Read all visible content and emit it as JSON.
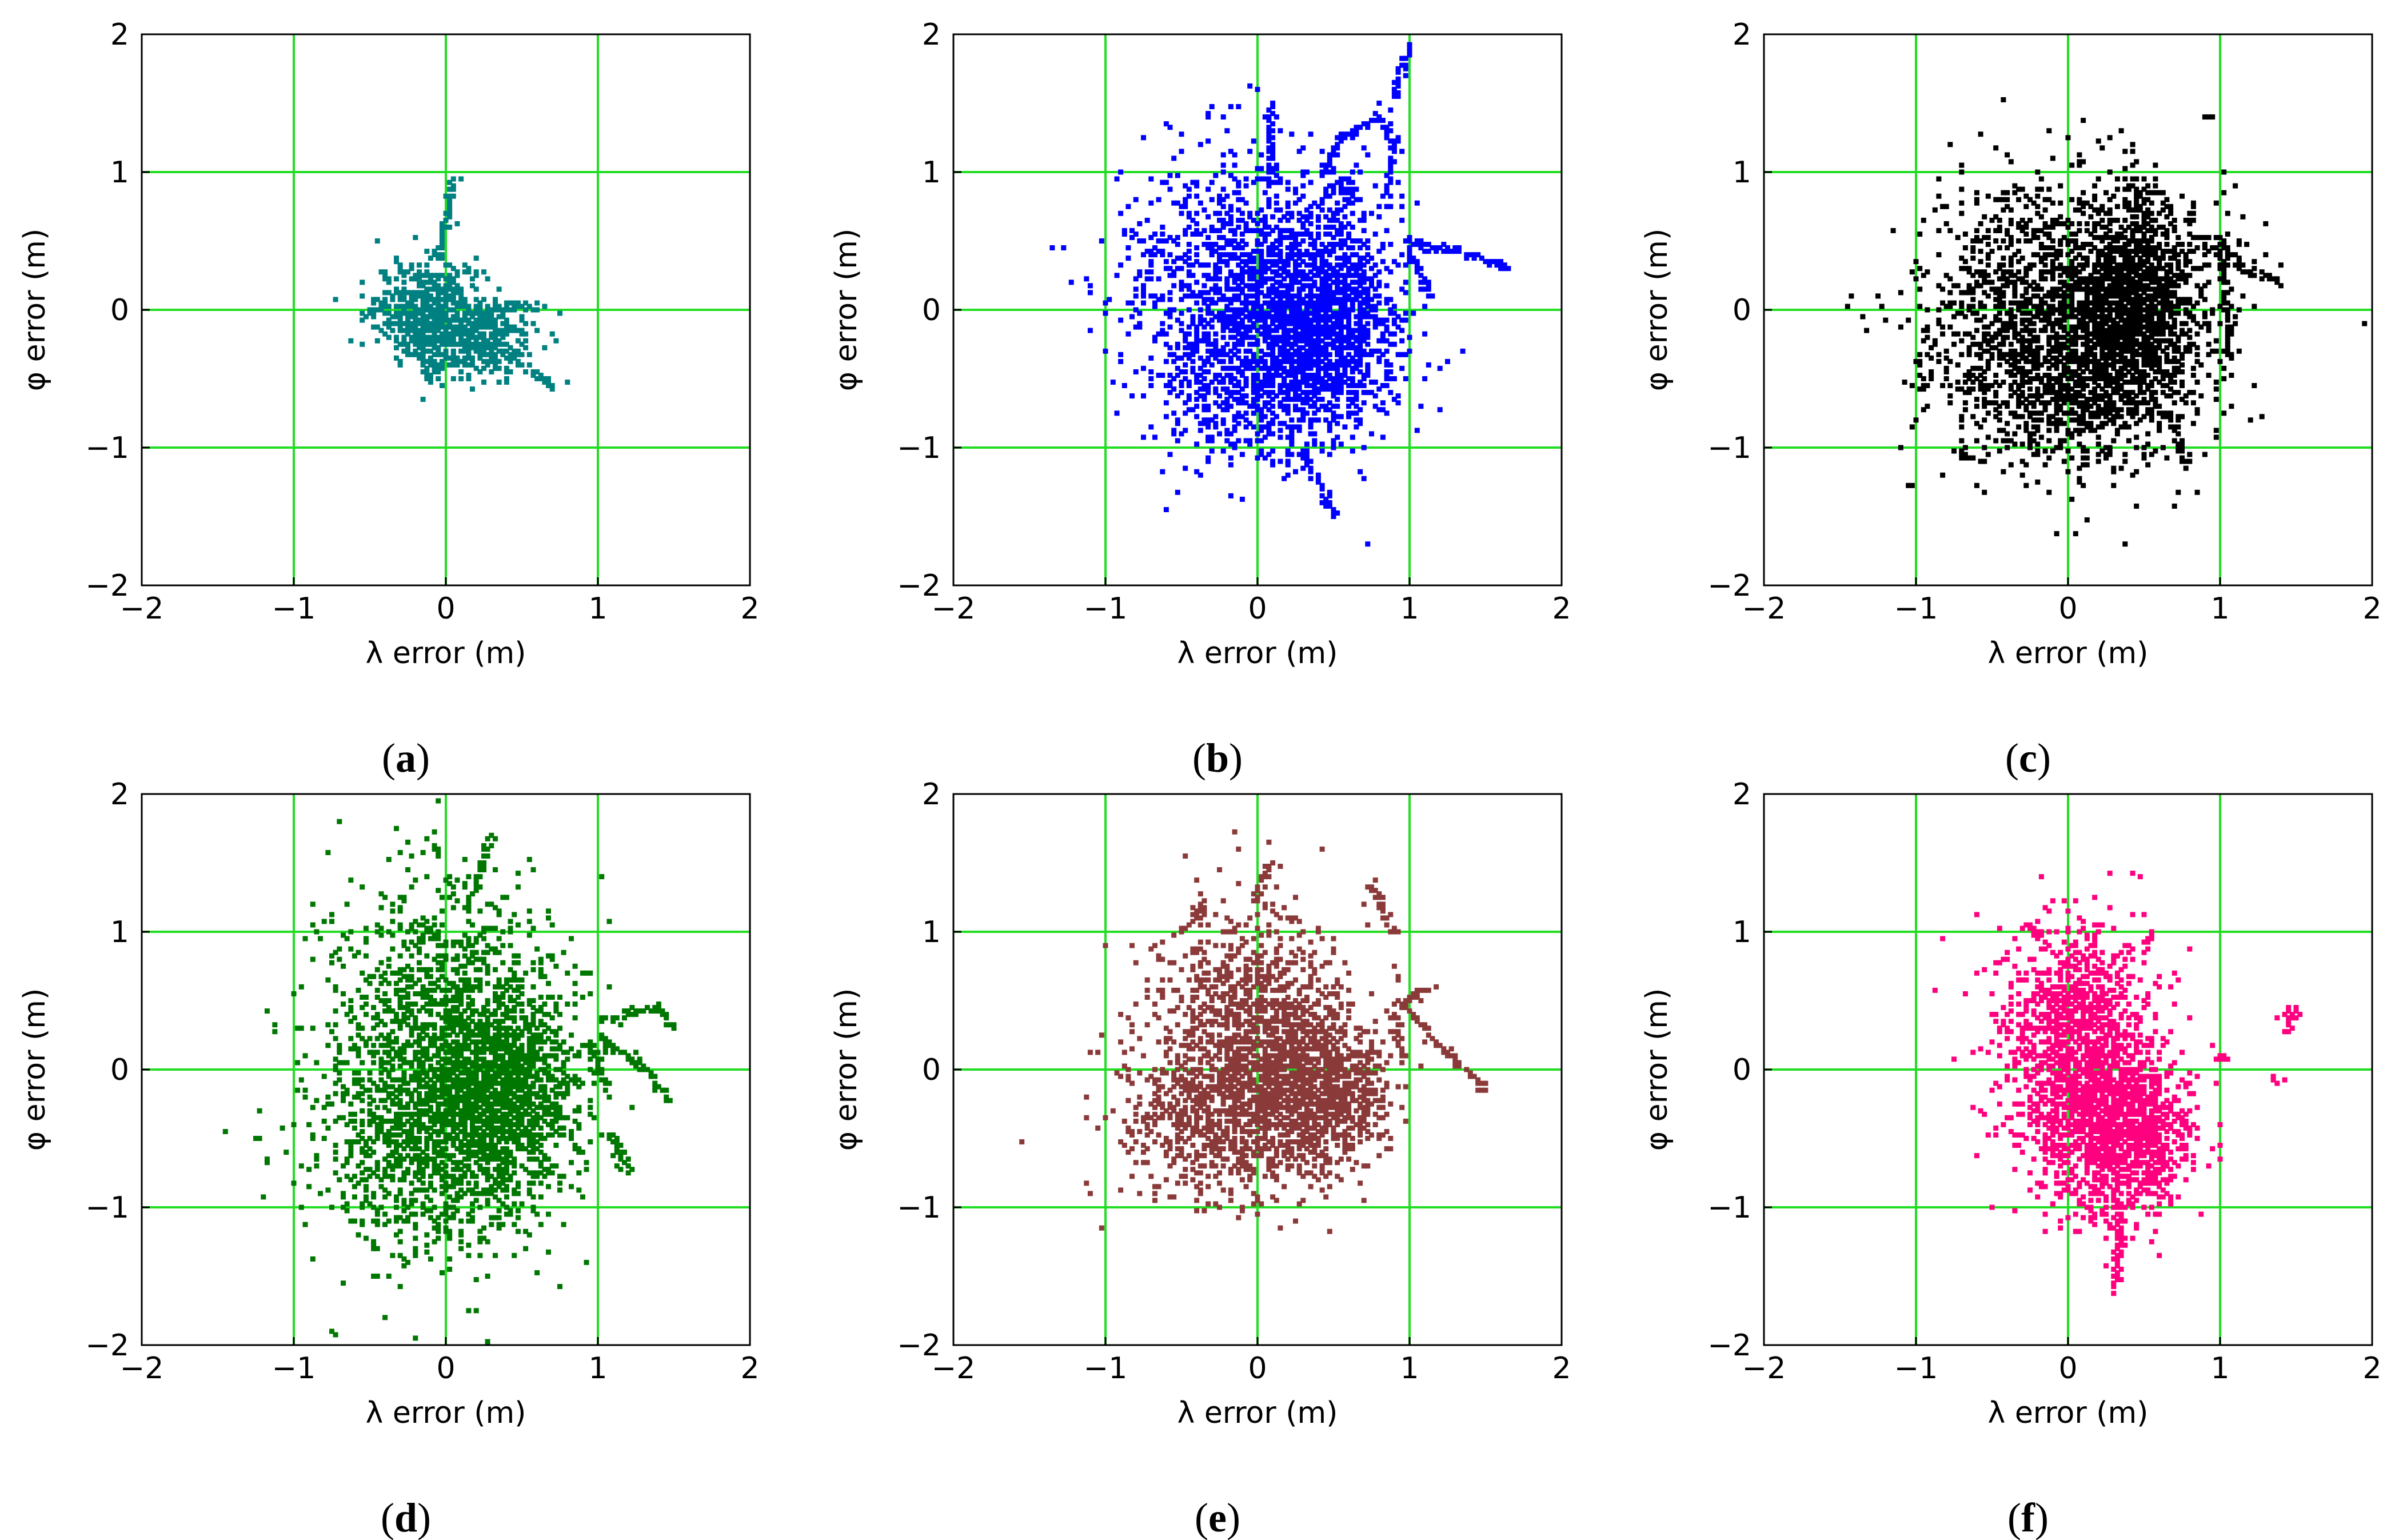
{
  "figure": {
    "panel_count": 6,
    "grid_color": "#22dd22",
    "axis_color": "#000000"
  },
  "chart_data": [
    {
      "type": "scatter",
      "label": "a",
      "xlabel": "λ error (m)",
      "ylabel": "φ error (m)",
      "xlim": [
        -2,
        2
      ],
      "ylim": [
        -2,
        2
      ],
      "xticks": [
        -2,
        -1,
        0,
        1,
        2
      ],
      "yticks": [
        -2,
        -1,
        0,
        1,
        2
      ],
      "xtick_labels": [
        "−2",
        "−1",
        "0",
        "1",
        "2"
      ],
      "ytick_labels": [
        "−2",
        "−1",
        "0",
        "1",
        "2"
      ],
      "grid": true,
      "color": "#008080",
      "cluster": {
        "center": [
          -0.1,
          0.0
        ],
        "core": [
          {
            "dx": 0.0,
            "dy": 0.0,
            "sx": 0.18,
            "sy": 0.18
          },
          {
            "dx": 0.25,
            "dy": -0.2,
            "sx": 0.22,
            "sy": 0.15
          }
        ],
        "point_count": 900
      },
      "trails": [
        {
          "points": [
            [
              -0.05,
              0.35
            ],
            [
              0.0,
              0.6
            ],
            [
              0.05,
              0.95
            ]
          ]
        },
        {
          "points": [
            [
              0.2,
              -0.2
            ],
            [
              0.45,
              -0.35
            ],
            [
              0.7,
              -0.55
            ]
          ]
        },
        {
          "points": [
            [
              -0.2,
              -0.15
            ],
            [
              -0.15,
              -0.35
            ],
            [
              -0.1,
              -0.5
            ]
          ]
        },
        {
          "points": [
            [
              0.3,
              0.0
            ],
            [
              0.5,
              0.02
            ],
            [
              0.65,
              0.02
            ]
          ]
        },
        {
          "points": [
            [
              -0.35,
              0.1
            ],
            [
              -0.45,
              0.0
            ],
            [
              -0.55,
              -0.05
            ]
          ]
        }
      ]
    },
    {
      "type": "scatter",
      "label": "b",
      "xlabel": "λ error (m)",
      "ylabel": "φ error (m)",
      "xlim": [
        -2,
        2
      ],
      "ylim": [
        -2,
        2
      ],
      "xticks": [
        -2,
        -1,
        0,
        1,
        2
      ],
      "yticks": [
        -2,
        -1,
        0,
        1,
        2
      ],
      "xtick_labels": [
        "−2",
        "−1",
        "0",
        "1",
        "2"
      ],
      "ytick_labels": [
        "−2",
        "−1",
        "0",
        "1",
        "2"
      ],
      "grid": true,
      "color": "#0000ff",
      "cluster": {
        "center": [
          -0.05,
          0.05
        ],
        "core": [
          {
            "dx": 0.0,
            "dy": 0.25,
            "sx": 0.42,
            "sy": 0.45
          },
          {
            "dx": 0.1,
            "dy": -0.45,
            "sx": 0.38,
            "sy": 0.35
          },
          {
            "dx": 0.5,
            "dy": -0.1,
            "sx": 0.22,
            "sy": 0.35
          }
        ],
        "point_count": 3200
      },
      "trails": [
        {
          "points": [
            [
              0.45,
              1.0
            ],
            [
              0.55,
              1.25
            ],
            [
              0.8,
              1.4
            ],
            [
              0.9,
              1.2
            ],
            [
              0.85,
              0.8
            ]
          ]
        },
        {
          "points": [
            [
              0.9,
              1.55
            ],
            [
              0.95,
              1.75
            ],
            [
              1.0,
              1.9
            ]
          ]
        },
        {
          "points": [
            [
              0.1,
              0.95
            ],
            [
              0.08,
              1.25
            ],
            [
              0.1,
              1.5
            ]
          ]
        },
        {
          "points": [
            [
              1.0,
              0.5
            ],
            [
              1.2,
              0.45
            ],
            [
              1.45,
              0.38
            ],
            [
              1.65,
              0.3
            ]
          ]
        },
        {
          "points": [
            [
              1.0,
              0.45
            ],
            [
              1.1,
              0.2
            ],
            [
              1.15,
              0.1
            ]
          ]
        },
        {
          "points": [
            [
              0.3,
              -1.0
            ],
            [
              0.4,
              -1.25
            ],
            [
              0.5,
              -1.5
            ]
          ]
        },
        {
          "points": [
            [
              0.5,
              0.9
            ],
            [
              0.62,
              0.95
            ],
            [
              0.6,
              0.8
            ]
          ]
        }
      ]
    },
    {
      "type": "scatter",
      "label": "c",
      "xlabel": "λ error (m)",
      "ylabel": "φ error (m)",
      "xlim": [
        -2,
        2
      ],
      "ylim": [
        -2,
        2
      ],
      "xticks": [
        -2,
        -1,
        0,
        1,
        2
      ],
      "yticks": [
        -2,
        -1,
        0,
        1,
        2
      ],
      "xtick_labels": [
        "−2",
        "−1",
        "0",
        "1",
        "2"
      ],
      "ytick_labels": [
        "−2",
        "−1",
        "0",
        "1",
        "2"
      ],
      "grid": true,
      "color": "#000000",
      "cluster": {
        "center": [
          -0.05,
          -0.05
        ],
        "core": [
          {
            "dx": 0.0,
            "dy": 0.2,
            "sx": 0.45,
            "sy": 0.42
          },
          {
            "dx": 0.05,
            "dy": -0.45,
            "sx": 0.4,
            "sy": 0.33
          },
          {
            "dx": 0.5,
            "dy": 0.1,
            "sx": 0.2,
            "sy": 0.35
          }
        ],
        "point_count": 3400
      },
      "trails": [
        {
          "points": [
            [
              1.0,
              0.5
            ],
            [
              1.15,
              0.3
            ],
            [
              1.3,
              0.25
            ],
            [
              1.4,
              0.2
            ]
          ]
        },
        {
          "points": [
            [
              1.0,
              0.45
            ],
            [
              1.05,
              0.0
            ],
            [
              1.05,
              -0.35
            ]
          ]
        },
        {
          "points": [
            [
              0.4,
              0.9
            ],
            [
              0.5,
              0.8
            ],
            [
              0.5,
              0.65
            ]
          ]
        },
        {
          "points": [
            [
              0.7,
              -0.85
            ],
            [
              0.75,
              -1.0
            ],
            [
              0.8,
              -1.15
            ]
          ]
        },
        {
          "points": [
            [
              0.9,
              1.4
            ],
            [
              0.95,
              1.4
            ]
          ]
        },
        {
          "points": [
            [
              -0.6,
              -1.1
            ],
            [
              -0.7,
              -1.05
            ]
          ]
        }
      ]
    },
    {
      "type": "scatter",
      "label": "d",
      "xlabel": "λ error (m)",
      "ylabel": "φ error (m)",
      "xlim": [
        -2,
        2
      ],
      "ylim": [
        -2,
        2
      ],
      "xticks": [
        -2,
        -1,
        0,
        1,
        2
      ],
      "yticks": [
        -2,
        -1,
        0,
        1,
        2
      ],
      "xtick_labels": [
        "−2",
        "−1",
        "0",
        "1",
        "2"
      ],
      "ytick_labels": [
        "−2",
        "−1",
        "0",
        "1",
        "2"
      ],
      "grid": true,
      "color": "#007700",
      "cluster": {
        "center": [
          -0.05,
          0.0
        ],
        "core": [
          {
            "dx": 0.0,
            "dy": 0.3,
            "sx": 0.38,
            "sy": 0.55
          },
          {
            "dx": 0.0,
            "dy": -0.55,
            "sx": 0.38,
            "sy": 0.4
          },
          {
            "dx": 0.45,
            "dy": -0.1,
            "sx": 0.22,
            "sy": 0.35
          }
        ],
        "point_count": 3400
      },
      "trails": [
        {
          "points": [
            [
              0.15,
              1.2
            ],
            [
              0.25,
              1.5
            ],
            [
              0.3,
              1.7
            ]
          ]
        },
        {
          "points": [
            [
              1.0,
              0.35
            ],
            [
              1.2,
              0.4
            ],
            [
              1.4,
              0.45
            ],
            [
              1.5,
              0.3
            ]
          ]
        },
        {
          "points": [
            [
              1.0,
              0.25
            ],
            [
              1.2,
              0.1
            ],
            [
              1.4,
              -0.1
            ],
            [
              1.45,
              -0.2
            ]
          ]
        },
        {
          "points": [
            [
              1.1,
              -0.45
            ],
            [
              1.15,
              -0.6
            ],
            [
              1.2,
              -0.75
            ]
          ]
        },
        {
          "points": [
            [
              0.95,
              0.2
            ],
            [
              1.0,
              0.0
            ],
            [
              1.05,
              -0.1
            ]
          ]
        }
      ]
    },
    {
      "type": "scatter",
      "label": "e",
      "xlabel": "λ error (m)",
      "ylabel": "φ error (m)",
      "xlim": [
        -2,
        2
      ],
      "ylim": [
        -2,
        2
      ],
      "xticks": [
        -2,
        -1,
        0,
        1,
        2
      ],
      "yticks": [
        -2,
        -1,
        0,
        1,
        2
      ],
      "xtick_labels": [
        "−2",
        "−1",
        "0",
        "1",
        "2"
      ],
      "ytick_labels": [
        "−2",
        "−1",
        "0",
        "1",
        "2"
      ],
      "grid": true,
      "color": "#8b3a3a",
      "cluster": {
        "center": [
          -0.05,
          0.05
        ],
        "core": [
          {
            "dx": 0.0,
            "dy": 0.3,
            "sx": 0.3,
            "sy": 0.4
          },
          {
            "dx": -0.1,
            "dy": -0.4,
            "sx": 0.35,
            "sy": 0.3
          },
          {
            "dx": 0.45,
            "dy": -0.15,
            "sx": 0.22,
            "sy": 0.3
          }
        ],
        "point_count": 2800
      },
      "trails": [
        {
          "points": [
            [
              0.95,
              0.5
            ],
            [
              1.1,
              0.3
            ],
            [
              1.3,
              0.05
            ],
            [
              1.5,
              -0.15
            ]
          ]
        },
        {
          "points": [
            [
              0.95,
              0.5
            ],
            [
              1.05,
              0.55
            ],
            [
              1.15,
              0.6
            ]
          ]
        },
        {
          "points": [
            [
              0.9,
              1.0
            ],
            [
              0.8,
              1.2
            ],
            [
              0.75,
              1.35
            ]
          ]
        },
        {
          "points": [
            [
              0.0,
              1.2
            ],
            [
              0.05,
              1.45
            ],
            [
              0.1,
              1.5
            ]
          ]
        },
        {
          "points": [
            [
              -0.5,
              1.0
            ],
            [
              -0.4,
              1.1
            ],
            [
              -0.35,
              1.2
            ]
          ]
        },
        {
          "points": [
            [
              0.9,
              0.4
            ],
            [
              0.95,
              0.1
            ]
          ]
        }
      ]
    },
    {
      "type": "scatter",
      "label": "f",
      "xlabel": "λ error (m)",
      "ylabel": "φ error (m)",
      "xlim": [
        -2,
        2
      ],
      "ylim": [
        -2,
        2
      ],
      "xticks": [
        -2,
        -1,
        0,
        1,
        2
      ],
      "yticks": [
        -2,
        -1,
        0,
        1,
        2
      ],
      "xtick_labels": [
        "−2",
        "−1",
        "0",
        "1",
        "2"
      ],
      "ytick_labels": [
        "−2",
        "−1",
        "0",
        "1",
        "2"
      ],
      "grid": true,
      "color": "#ff007f",
      "cluster": {
        "center": [
          0.05,
          0.05
        ],
        "core": [
          {
            "dx": 0.0,
            "dy": 0.3,
            "sx": 0.25,
            "sy": 0.35
          },
          {
            "dx": 0.1,
            "dy": -0.35,
            "sx": 0.25,
            "sy": 0.3
          },
          {
            "dx": 0.35,
            "dy": -0.5,
            "sx": 0.2,
            "sy": 0.3
          }
        ],
        "point_count": 2600
      },
      "trails": [
        {
          "points": [
            [
              0.3,
              -0.9
            ],
            [
              0.35,
              -1.2
            ],
            [
              0.32,
              -1.45
            ],
            [
              0.3,
              -1.6
            ]
          ]
        },
        {
          "points": [
            [
              0.5,
              0.9
            ],
            [
              0.55,
              1.0
            ]
          ]
        },
        {
          "points": [
            [
              -0.2,
              0.95
            ],
            [
              -0.25,
              1.05
            ]
          ]
        },
        {
          "points": [
            [
              1.4,
              0.4
            ],
            [
              1.5,
              0.45
            ],
            [
              1.45,
              0.3
            ]
          ]
        },
        {
          "points": [
            [
              1.35,
              -0.05
            ],
            [
              1.4,
              -0.1
            ]
          ]
        },
        {
          "points": [
            [
              1.0,
              0.1
            ],
            [
              1.05,
              0.08
            ]
          ]
        }
      ]
    }
  ]
}
